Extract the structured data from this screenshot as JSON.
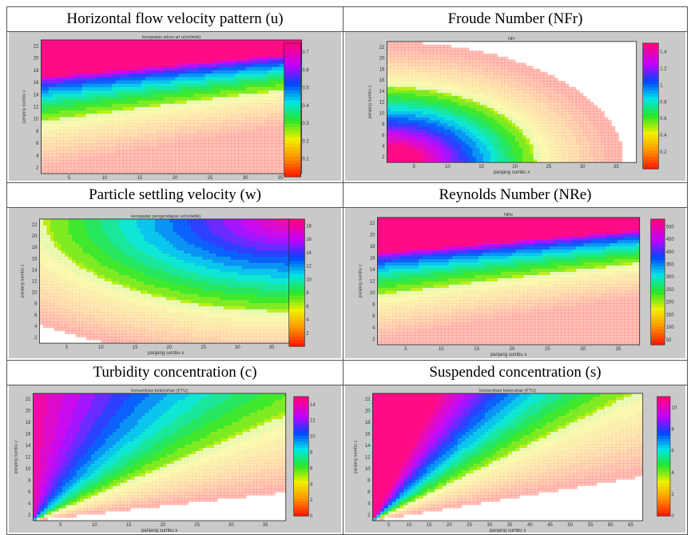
{
  "chart_data": [
    {
      "type": "heatmap",
      "panel_title": "Horizontal flow velocity pattern (u)",
      "title": "kecepatan aliran air u(m/detik)",
      "xlabel": "panjang sumbu x",
      "ylabel": "panjang sumbu z",
      "xlim": [
        1,
        38
      ],
      "ylim": [
        1,
        23
      ],
      "xticks": [
        5,
        10,
        15,
        20,
        25,
        30,
        35
      ],
      "yticks": [
        2,
        4,
        6,
        8,
        10,
        12,
        14,
        16,
        18,
        20,
        22
      ],
      "colorbar": {
        "ticks": [
          "0.1",
          "0.2",
          "0.3",
          "0.4",
          "0.5",
          "0.6",
          "0.7"
        ],
        "min": 0,
        "max": 0.75
      },
      "pattern": "top-band"
    },
    {
      "type": "heatmap",
      "panel_title": "Froude Number (NFr)",
      "title": "NFr",
      "xlabel": "panjang sumbu x",
      "ylabel": "panjang sumbu z",
      "xlim": [
        1,
        38
      ],
      "ylim": [
        1,
        23
      ],
      "xticks": [
        5,
        10,
        15,
        20,
        25,
        30,
        35
      ],
      "yticks": [
        2,
        4,
        6,
        8,
        10,
        12,
        14,
        16,
        18,
        20,
        22
      ],
      "colorbar": {
        "ticks": [
          "0.2",
          "0.4",
          "0.6",
          "0.8",
          "1",
          "1.2",
          "1.4"
        ],
        "min": 0,
        "max": 1.5
      },
      "pattern": "corner-blob"
    },
    {
      "type": "heatmap",
      "panel_title": "Particle settling velocity (w)",
      "title": "kecepatan pengendapan w(m/detik)",
      "xlabel": "panjang sumbu x",
      "ylabel": "panjang sumbu z",
      "xlim": [
        1,
        38
      ],
      "ylim": [
        1,
        23
      ],
      "xticks": [
        5,
        10,
        15,
        20,
        25,
        30,
        35
      ],
      "yticks": [
        2,
        4,
        6,
        8,
        10,
        12,
        14,
        16,
        18,
        20,
        22
      ],
      "colorbar": {
        "ticks": [
          "2",
          "4",
          "6",
          "8",
          "10",
          "12",
          "14",
          "16",
          "18"
        ],
        "min": 0,
        "max": 19
      },
      "pattern": "radial-topright"
    },
    {
      "type": "heatmap",
      "panel_title": "Reynolds Number (NRe)",
      "title": "NRe",
      "xlabel": "panjang sumbu x",
      "ylabel": "panjang sumbu z",
      "xlim": [
        1,
        38
      ],
      "ylim": [
        1,
        23
      ],
      "xticks": [
        5,
        10,
        15,
        20,
        25,
        30,
        35
      ],
      "yticks": [
        2,
        4,
        6,
        8,
        10,
        12,
        14,
        16,
        18,
        20,
        22
      ],
      "colorbar": {
        "ticks": [
          "50",
          "100",
          "150",
          "200",
          "250",
          "300",
          "350",
          "400",
          "450",
          "500"
        ],
        "min": 30,
        "max": 530
      },
      "pattern": "top-band"
    },
    {
      "type": "heatmap",
      "panel_title": "Turbidity concentration (c)",
      "title": "konsentrasi kekeruhan (FTU)",
      "xlabel": "panjang sumbu x",
      "ylabel": "panjang sumbu z",
      "xlim": [
        1,
        38
      ],
      "ylim": [
        1,
        23
      ],
      "xticks": [
        5,
        10,
        15,
        20,
        25,
        30,
        35
      ],
      "yticks": [
        2,
        4,
        6,
        8,
        10,
        12,
        14,
        16,
        18,
        20,
        22
      ],
      "colorbar": {
        "ticks": [
          "0",
          "2",
          "4",
          "6",
          "8",
          "10",
          "12",
          "14"
        ],
        "min": 0,
        "max": 15
      },
      "pattern": "diagonal-fan"
    },
    {
      "type": "heatmap",
      "panel_title": "Suspended concentration (s)",
      "title": "konsentrasi kekeruhan (FTU)",
      "xlabel": "panjang sumbu x",
      "ylabel": "panjang sumbu z",
      "xlim": [
        1,
        68
      ],
      "ylim": [
        1,
        23
      ],
      "xticks": [
        5,
        10,
        15,
        20,
        25,
        30,
        35,
        40,
        45,
        50,
        55,
        60,
        65
      ],
      "yticks": [
        2,
        4,
        6,
        8,
        10,
        12,
        14,
        16,
        18,
        20,
        22
      ],
      "colorbar": {
        "ticks": [
          "0",
          "2",
          "4",
          "6",
          "8",
          "10"
        ],
        "min": 0,
        "max": 11
      },
      "pattern": "diagonal-fan-narrow"
    }
  ]
}
